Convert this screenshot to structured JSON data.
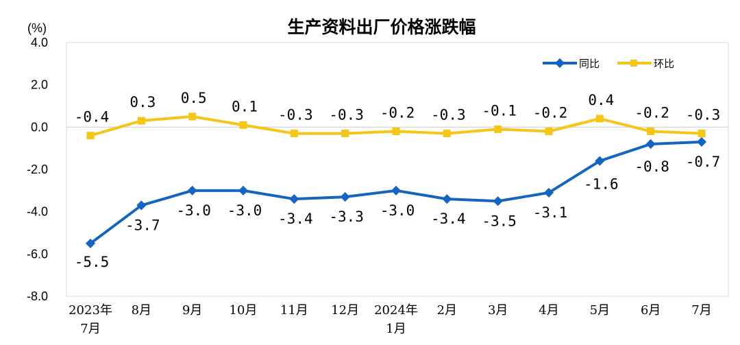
{
  "chart_data": {
    "type": "line",
    "title": "生产资料出厂价格涨跌幅",
    "unit": "(%)",
    "ylim": [
      -8.0,
      4.0
    ],
    "y_ticks": [
      "4.0",
      "2.0",
      "0.0",
      "-2.0",
      "-4.0",
      "-6.0",
      "-8.0"
    ],
    "categories": [
      [
        "2023年",
        "7月"
      ],
      [
        "8月"
      ],
      [
        "9月"
      ],
      [
        "10月"
      ],
      [
        "11月"
      ],
      [
        "12月"
      ],
      [
        "2024年",
        "1月"
      ],
      [
        "2月"
      ],
      [
        "3月"
      ],
      [
        "4月"
      ],
      [
        "5月"
      ],
      [
        "6月"
      ],
      [
        "7月"
      ]
    ],
    "grid": false,
    "legend_position": "top-right",
    "series": [
      {
        "name": "同比",
        "color": "#1565C0",
        "marker": "diamond",
        "values": [
          -5.5,
          -3.7,
          -3.0,
          -3.0,
          -3.4,
          -3.3,
          -3.0,
          -3.4,
          -3.5,
          -3.1,
          -1.6,
          -0.8,
          -0.7
        ],
        "labels": [
          "-5.5",
          "-3.7",
          "-3.0",
          "-3.0",
          "-3.4",
          "-3.3",
          "-3.0",
          "-3.4",
          "-3.5",
          "-3.1",
          "-1.6",
          "-0.8",
          "-0.7"
        ]
      },
      {
        "name": "环比",
        "color": "#F5C518",
        "marker": "square",
        "values": [
          -0.4,
          0.3,
          0.5,
          0.1,
          -0.3,
          -0.3,
          -0.2,
          -0.3,
          -0.1,
          -0.2,
          0.4,
          -0.2,
          -0.3
        ],
        "labels": [
          "-0.4",
          "0.3",
          "0.5",
          "0.1",
          "-0.3",
          "-0.3",
          "-0.2",
          "-0.3",
          "-0.1",
          "-0.2",
          "0.4",
          "-0.2",
          "-0.3"
        ]
      }
    ]
  }
}
